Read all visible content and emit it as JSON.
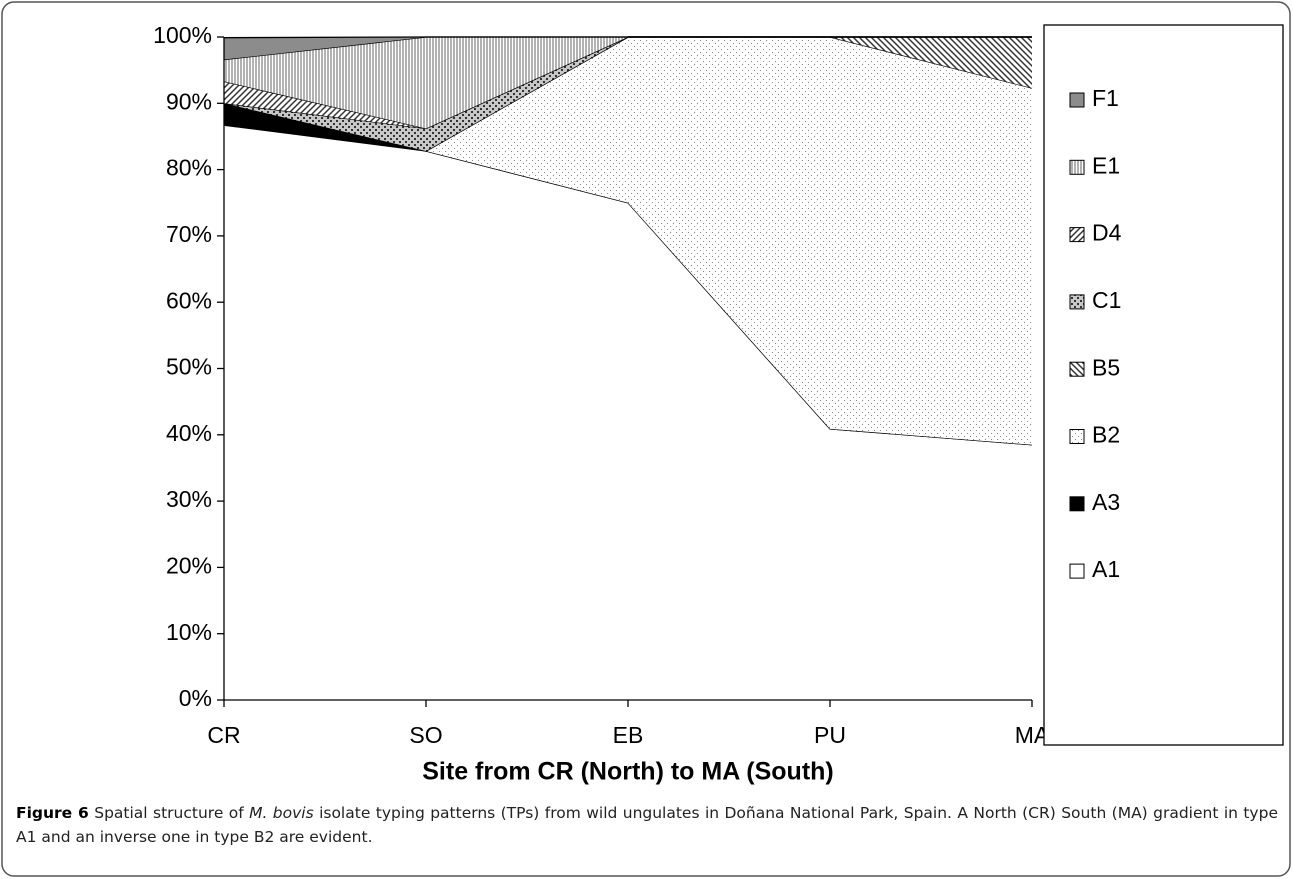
{
  "chart_data": {
    "type": "stacked_area",
    "xlabel": "Site from CR (North) to MA (South)",
    "categories": [
      "CR",
      "SO",
      "EB",
      "PU",
      "MA"
    ],
    "series": [
      {
        "name": "A1",
        "color": "#ffffff",
        "values": [
          86.7,
          82.8,
          75,
          40.9,
          38.5
        ]
      },
      {
        "name": "A3",
        "color": "#000000",
        "values": [
          3.3,
          0,
          0,
          0,
          0
        ]
      },
      {
        "name": "B2",
        "color": "#f0f0f0",
        "values": [
          0,
          0,
          25,
          59.1,
          53.8
        ]
      },
      {
        "name": "B5",
        "color": "#bdbdbd",
        "values": [
          0,
          0,
          0,
          0,
          7.7
        ]
      },
      {
        "name": "C1",
        "color": "#c8c8c8",
        "values": [
          0,
          3.4,
          0,
          0,
          0
        ]
      },
      {
        "name": "D4",
        "color": "#b0b0b0",
        "values": [
          3.3,
          0,
          0,
          0,
          0
        ]
      },
      {
        "name": "E1",
        "color": "#dcdcdc",
        "values": [
          3.3,
          13.8,
          0,
          0,
          0
        ]
      },
      {
        "name": "F1",
        "color": "#8c8c8c",
        "values": [
          3.3,
          0,
          0,
          0,
          0
        ]
      }
    ],
    "ylim": [
      0,
      100
    ],
    "yticks": [
      {
        "value": 0,
        "label": "0%"
      },
      {
        "value": 10,
        "label": "10%"
      },
      {
        "value": 20,
        "label": "20%"
      },
      {
        "value": 30,
        "label": "30%"
      },
      {
        "value": 40,
        "label": "40%"
      },
      {
        "value": 50,
        "label": "50%"
      },
      {
        "value": 60,
        "label": "60%"
      },
      {
        "value": 70,
        "label": "70%"
      },
      {
        "value": 80,
        "label": "80%"
      },
      {
        "value": 90,
        "label": "90%"
      },
      {
        "value": 100,
        "label": "100%"
      }
    ],
    "legend": "right",
    "caption": {
      "label": "Figure 6",
      "parts": [
        "Spatial structure of ",
        "M. bovis",
        " isolate typing patterns (TPs) from wild ungulates in Doñana National Park, Spain. A North (CR) South (MA) gradient in type A1 and an inverse one in type B2 are evident."
      ]
    }
  }
}
